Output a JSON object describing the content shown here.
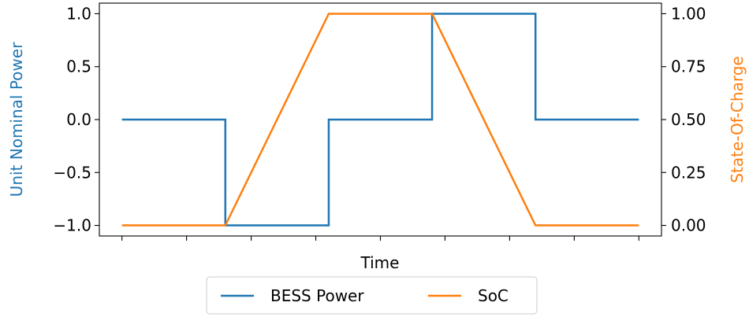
{
  "chart_data": {
    "type": "line",
    "xlabel": "Time",
    "ylabel_left": "Unit Nominal Power",
    "ylabel_right": "State-Of-Charge",
    "x": [
      0,
      1,
      2,
      3,
      4,
      5,
      6,
      7,
      8
    ],
    "xlim": [
      -0.35,
      8.35
    ],
    "x_tick_labels_visible": false,
    "ylim_left": [
      -1.1,
      1.1
    ],
    "ylim_right": [
      -0.05,
      1.05
    ],
    "yticks_left": [
      1.0,
      0.5,
      0.0,
      -0.5,
      -1.0
    ],
    "yticks_left_labels": [
      "1.0",
      "0.5",
      "0.0",
      "−0.5",
      "−1.0"
    ],
    "yticks_right": [
      1.0,
      0.75,
      0.5,
      0.25,
      0.0
    ],
    "yticks_right_labels": [
      "1.00",
      "0.75",
      "0.50",
      "0.25",
      "0.00"
    ],
    "grid": false,
    "legend_placement": "bottom-center, below axes",
    "series": [
      {
        "name": "BESS Power",
        "axis": "left",
        "color": "#1f77b4",
        "step": "post",
        "x": [
          0,
          1.6,
          3.2,
          4.8,
          6.4,
          8
        ],
        "values": [
          0,
          -1,
          0,
          1,
          0,
          0
        ]
      },
      {
        "name": "SoC",
        "axis": "right",
        "color": "#ff7f0e",
        "x": [
          0,
          1.6,
          3.2,
          4.8,
          6.4,
          8
        ],
        "values": [
          0,
          0,
          1,
          1,
          0,
          0
        ]
      }
    ]
  }
}
